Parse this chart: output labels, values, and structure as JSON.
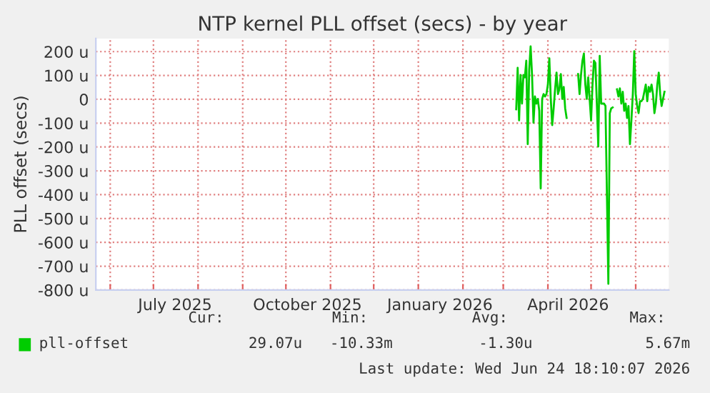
{
  "chart_data": {
    "type": "line",
    "title": "NTP kernel PLL offset (secs) - by year",
    "ylabel": "PLL offset (secs)",
    "x": [
      "2026-03-10",
      "2026-03-11",
      "2026-03-12",
      "2026-03-13",
      "2026-03-14",
      "2026-03-15",
      "2026-03-16",
      "2026-03-17",
      "2026-03-18",
      "2026-03-19",
      "2026-03-20",
      "2026-03-21",
      "2026-03-22",
      "2026-03-23",
      "2026-03-24",
      "2026-03-25",
      "2026-03-26",
      "2026-03-27",
      "2026-03-28",
      "2026-03-29",
      "2026-03-30",
      "2026-03-31",
      "2026-04-01",
      "2026-04-02",
      "2026-04-03",
      "2026-04-04",
      "2026-04-05",
      "2026-04-06",
      "2026-04-07",
      "2026-04-08",
      "2026-04-09",
      "2026-04-10",
      "2026-04-11",
      "2026-04-12",
      "2026-04-13",
      "2026-04-14",
      "2026-04-18",
      "2026-04-22",
      "2026-04-23",
      "2026-04-24",
      "2026-04-25",
      "2026-04-26",
      "2026-04-27",
      "2026-04-28",
      "2026-04-29",
      "2026-04-30",
      "2026-05-01",
      "2026-05-02",
      "2026-05-03",
      "2026-05-04",
      "2026-05-05",
      "2026-05-06",
      "2026-05-07",
      "2026-05-08",
      "2026-05-09",
      "2026-05-10",
      "2026-05-11",
      "2026-05-12",
      "2026-05-13",
      "2026-05-14",
      "2026-05-15",
      "2026-05-16",
      "2026-05-18",
      "2026-05-19",
      "2026-05-20",
      "2026-05-21",
      "2026-05-22",
      "2026-05-23",
      "2026-05-24",
      "2026-05-25",
      "2026-05-26",
      "2026-05-27",
      "2026-05-28",
      "2026-05-29",
      "2026-05-30",
      "2026-05-31",
      "2026-06-01",
      "2026-06-02",
      "2026-06-03",
      "2026-06-04",
      "2026-06-05",
      "2026-06-06",
      "2026-06-07",
      "2026-06-08",
      "2026-06-09",
      "2026-06-10",
      "2026-06-11",
      "2026-06-12",
      "2026-06-13",
      "2026-06-14",
      "2026-06-15",
      "2026-06-16",
      "2026-06-17",
      "2026-06-18",
      "2026-06-19",
      "2026-06-20",
      "2026-06-21"
    ],
    "series": [
      {
        "name": "pll-offset",
        "color": "#00cc00",
        "values": [
          -42,
          132,
          -88,
          102,
          -18,
          102,
          92,
          162,
          -188,
          122,
          222,
          102,
          -98,
          12,
          -18,
          2,
          -48,
          -374,
          2,
          22,
          12,
          22,
          62,
          172,
          2,
          -108,
          -38,
          42,
          112,
          22,
          42,
          106,
          2,
          52,
          -38,
          -78,
          null,
          106,
          22,
          102,
          162,
          192,
          62,
          2,
          92,
          2,
          -88,
          62,
          162,
          152,
          -18,
          -198,
          182,
          -18,
          -18,
          -18,
          -28,
          -398,
          -774,
          -58,
          -38,
          -34,
          null,
          42,
          12,
          46,
          -18,
          32,
          -48,
          -18,
          -78,
          -28,
          -188,
          -88,
          22,
          202,
          22,
          -28,
          -58,
          -8,
          -8,
          2,
          32,
          62,
          -8,
          52,
          32,
          62,
          22,
          -58,
          -18,
          62,
          112,
          22,
          -28,
          2,
          32
        ]
      }
    ],
    "xlim": [
      "2025-05-22",
      "2026-06-24"
    ],
    "xticks": [
      {
        "value": "2025-06-01",
        "label": null
      },
      {
        "value": "2025-07-01",
        "label": null
      },
      {
        "value": "2025-07-16",
        "label": "July 2025"
      },
      {
        "value": "2025-08-01",
        "label": null
      },
      {
        "value": "2025-09-01",
        "label": null
      },
      {
        "value": "2025-10-01",
        "label": null
      },
      {
        "value": "2025-10-16",
        "label": "October 2025"
      },
      {
        "value": "2025-11-01",
        "label": null
      },
      {
        "value": "2025-12-01",
        "label": null
      },
      {
        "value": "2026-01-01",
        "label": null
      },
      {
        "value": "2026-01-16",
        "label": "January 2026"
      },
      {
        "value": "2026-02-01",
        "label": null
      },
      {
        "value": "2026-03-01",
        "label": null
      },
      {
        "value": "2026-04-01",
        "label": null
      },
      {
        "value": "2026-04-15",
        "label": "April 2026"
      },
      {
        "value": "2026-05-01",
        "label": null
      },
      {
        "value": "2026-06-01",
        "label": null
      }
    ],
    "ylim": [
      -800,
      255
    ],
    "yticks": [
      {
        "value": 200,
        "label": "200 u"
      },
      {
        "value": 100,
        "label": "100 u"
      },
      0,
      {
        "value": -100,
        "label": "-100 u"
      },
      {
        "value": -200,
        "label": "-200 u"
      },
      {
        "value": -300,
        "label": "-300 u"
      },
      {
        "value": -400,
        "label": "-400 u"
      },
      {
        "value": -500,
        "label": "-500 u"
      },
      {
        "value": -600,
        "label": "-600 u"
      },
      {
        "value": -700,
        "label": "-700 u"
      },
      {
        "value": -800,
        "label": "-800 u"
      }
    ],
    "grid": true,
    "legend": "bottom left",
    "marker": "none",
    "line_style": "solid",
    "annotations": [
      "Cur:",
      "Min:",
      "Avg:",
      "Max:",
      "29.07u",
      "-10.33m",
      "-1.30u",
      "5.67m",
      "Last update: Wed Jun 24 18:10:07 2026"
    ]
  }
}
